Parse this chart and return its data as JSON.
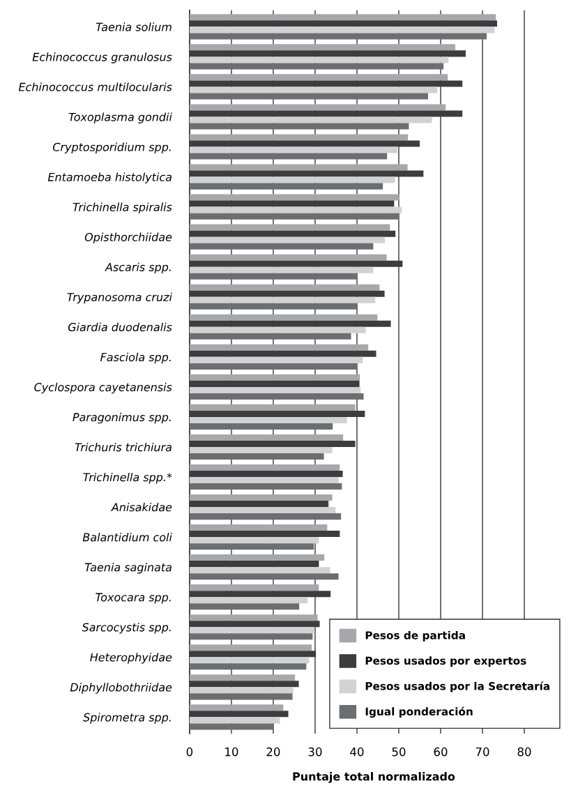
{
  "chart_data": {
    "type": "bar",
    "orientation": "horizontal",
    "xlabel": "Puntaje total normalizado",
    "categories": [
      "Taenia solium",
      "Echinococcus granulosus",
      "Echinococcus multilocularis",
      "Toxoplasma gondii",
      "Cryptosporidium spp.",
      "Entamoeba histolytica",
      "Trichinella spiralis",
      "Opisthorchiidae",
      "Ascaris spp.",
      "Trypanosoma cruzi",
      "Giardia duodenalis",
      "Fasciola spp.",
      "Cyclospora cayetanensis",
      "Paragonimus spp.",
      "Trichuris trichiura",
      "Trichinella spp.*",
      "Anisakidae",
      "Balantidium coli",
      "Taenia saginata",
      "Toxocara spp.",
      "Sarcocystis spp.",
      "Heterophyidae",
      "Diphyllobothriidae",
      "Spirometra spp."
    ],
    "series": [
      {
        "name": "Pesos de partida",
        "color": "#a7a8ab",
        "values": [
          73.2,
          63.5,
          61.7,
          61.2,
          52.2,
          52.1,
          50.1,
          47.9,
          47.1,
          45.4,
          44.9,
          42.7,
          40.7,
          39.6,
          36.7,
          35.9,
          34.1,
          32.9,
          32.2,
          30.9,
          30.6,
          29.2,
          25.2,
          22.4
        ]
      },
      {
        "name": "Pesos usados por expertos",
        "color": "#3d3d3d",
        "values": [
          73.5,
          66.0,
          65.2,
          65.2,
          55.0,
          55.9,
          48.9,
          49.2,
          50.9,
          46.6,
          48.1,
          44.6,
          40.6,
          41.9,
          39.6,
          36.6,
          33.2,
          35.9,
          30.9,
          33.7,
          31.1,
          30.2,
          26.1,
          23.6
        ]
      },
      {
        "name": "Pesos usados por la Secretaría",
        "color": "#d1d2d4",
        "values": [
          72.9,
          61.9,
          59.2,
          57.9,
          49.7,
          49.1,
          50.7,
          46.7,
          43.9,
          44.4,
          42.1,
          41.4,
          40.9,
          37.6,
          34.1,
          35.6,
          34.9,
          30.9,
          33.6,
          28.2,
          29.9,
          28.6,
          24.8,
          21.6
        ]
      },
      {
        "name": "Igual ponderación",
        "color": "#6d6e71",
        "values": [
          71.0,
          60.7,
          57.0,
          52.4,
          47.2,
          46.2,
          50.1,
          43.9,
          40.1,
          40.1,
          38.6,
          40.0,
          41.6,
          34.2,
          32.1,
          36.4,
          36.2,
          29.7,
          35.6,
          26.2,
          29.4,
          27.9,
          24.6,
          19.9
        ]
      }
    ],
    "xlim": [
      0,
      88
    ],
    "xticks": [
      0,
      10,
      20,
      30,
      40,
      50,
      60,
      70,
      80
    ],
    "grid": "x",
    "legend": "bottom right"
  }
}
